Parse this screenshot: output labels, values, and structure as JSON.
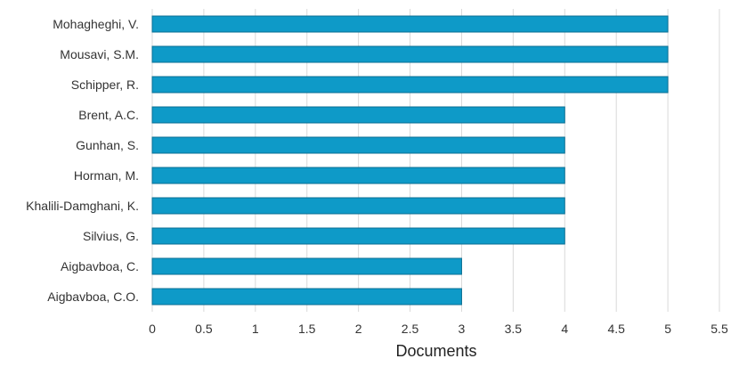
{
  "chart_data": {
    "type": "bar",
    "orientation": "horizontal",
    "categories": [
      "Mohagheghi, V.",
      "Mousavi, S.M.",
      "Schipper, R.",
      "Brent, A.C.",
      "Gunhan, S.",
      "Horman, M.",
      "Khalili-Damghani, K.",
      "Silvius, G.",
      "Aigbavboa, C.",
      "Aigbavboa, C.O."
    ],
    "values": [
      5,
      5,
      5,
      4,
      4,
      4,
      4,
      4,
      3,
      3
    ],
    "xlabel": "Documents",
    "ylabel": "",
    "title": "",
    "xlim": [
      0,
      5.5
    ],
    "xticks": [
      "0",
      "0.5",
      "1",
      "1.5",
      "2",
      "2.5",
      "3",
      "3.5",
      "4",
      "4.5",
      "5",
      "5.5"
    ],
    "grid": "vertical",
    "legend": "none",
    "colors": {
      "bar": "#0e9ac8",
      "bar_stroke": "#0b6f93",
      "grid": "#d9d9d9"
    }
  }
}
